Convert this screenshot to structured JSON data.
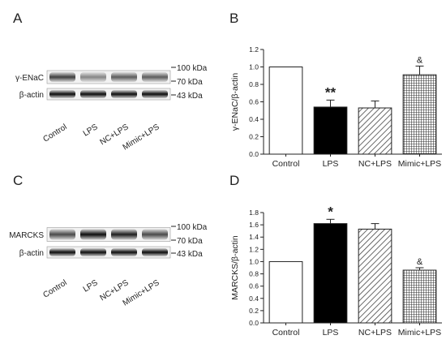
{
  "panels": {
    "A": {
      "letter": "A"
    },
    "C": {
      "letter": "C"
    }
  },
  "blots": [
    {
      "panel": "A",
      "rows": [
        {
          "label": "γ-ENaC",
          "intensity": [
            0.75,
            0.45,
            0.62,
            0.62
          ]
        },
        {
          "label": "β-actin",
          "intensity": [
            0.95,
            0.95,
            0.95,
            0.95
          ]
        }
      ],
      "markers": [
        "100 kDa",
        "70 kDa",
        "43 kDa"
      ],
      "lanes": [
        "Control",
        "LPS",
        "NC+LPS",
        "Mimic+LPS"
      ]
    },
    {
      "panel": "C",
      "rows": [
        {
          "label": "MARCKS",
          "intensity": [
            0.7,
            0.95,
            0.88,
            0.7
          ]
        },
        {
          "label": "β-actin",
          "intensity": [
            0.95,
            0.95,
            0.95,
            0.95
          ]
        }
      ],
      "markers": [
        "100 kDa",
        "70 kDa",
        "43 kDa"
      ],
      "lanes": [
        "Control",
        "LPS",
        "NC+LPS",
        "Mimic+LPS"
      ]
    }
  ],
  "chart_data": [
    {
      "panel": "B",
      "letter": "B",
      "type": "bar",
      "categories": [
        "Control",
        "LPS",
        "NC+LPS",
        "Mimic+LPS"
      ],
      "values": [
        1.0,
        0.54,
        0.53,
        0.91
      ],
      "errors": [
        0,
        0.08,
        0.08,
        0.1
      ],
      "annotations": [
        "",
        "**",
        "",
        "&"
      ],
      "fills": [
        "white",
        "black",
        "diagonal-hatch",
        "grid-hatch"
      ],
      "ylabel": "γ-ENaC/β-actin",
      "ylim": [
        0,
        1.2
      ],
      "yticks": [
        "0.0",
        "0.2",
        "0.4",
        "0.6",
        "0.8",
        "1.0",
        "1.2"
      ]
    },
    {
      "panel": "D",
      "letter": "D",
      "type": "bar",
      "categories": [
        "Control",
        "LPS",
        "NC+LPS",
        "Mimic+LPS"
      ],
      "values": [
        1.0,
        1.62,
        1.53,
        0.86
      ],
      "errors": [
        0,
        0.07,
        0.09,
        0.04
      ],
      "annotations": [
        "",
        "*",
        "",
        "&"
      ],
      "fills": [
        "white",
        "black",
        "diagonal-hatch",
        "grid-hatch"
      ],
      "ylabel": "MARCKS/β-actin",
      "ylim": [
        0,
        1.8
      ],
      "yticks": [
        "0.0",
        "0.2",
        "0.4",
        "0.6",
        "0.8",
        "1.0",
        "1.2",
        "1.4",
        "1.6",
        "1.8"
      ]
    }
  ]
}
